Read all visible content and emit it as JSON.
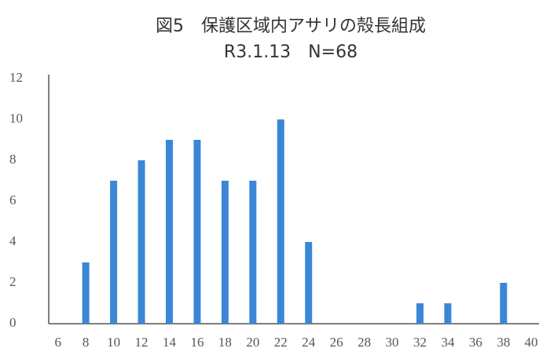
{
  "chart_data": {
    "type": "bar",
    "title": "図5　保護区域内アサリの殻長組成",
    "subtitle": "R3.1.13　N=68",
    "categories": [
      "6",
      "8",
      "10",
      "12",
      "14",
      "16",
      "18",
      "20",
      "22",
      "24",
      "26",
      "28",
      "30",
      "32",
      "34",
      "36",
      "38",
      "40"
    ],
    "values": [
      0,
      3,
      7,
      8,
      9,
      9,
      7,
      7,
      10,
      4,
      0,
      0,
      0,
      1,
      1,
      0,
      2,
      0
    ],
    "color": "#3b87d6",
    "ylim": [
      0,
      12
    ],
    "yticks": [
      0,
      2,
      4,
      6,
      8,
      10,
      12
    ],
    "grid": false
  }
}
